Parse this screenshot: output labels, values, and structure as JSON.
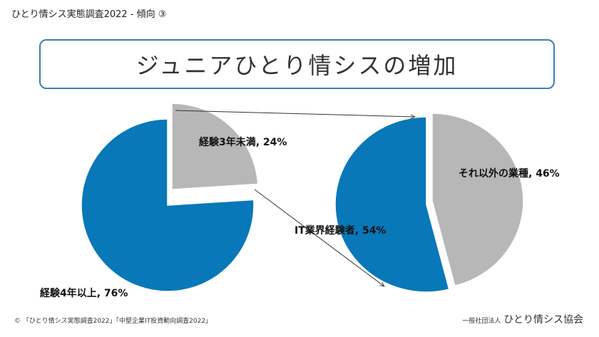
{
  "header": {
    "text": "ひとり情シス実態調査2022 - 傾向 ③"
  },
  "title": "ジュニアひとり情シスの増加",
  "chart_data": [
    {
      "type": "pie",
      "labels": [
        "経験3年未満",
        "経験4年以上"
      ],
      "values": [
        24,
        76
      ],
      "data_labels": [
        "経験3年未満, 24%",
        "経験4年以上, 76%"
      ],
      "colors": [
        "#b7b7b7",
        "#0878b8"
      ],
      "exploded": "経験3年未満"
    },
    {
      "type": "pie",
      "labels": [
        "それ以外の業種",
        "IT業界経験者"
      ],
      "values": [
        46,
        54
      ],
      "data_labels": [
        "それ以外の業種, 46%",
        "IT業界経験者, 54%"
      ],
      "colors": [
        "#b7b7b7",
        "#0878b8"
      ],
      "exploded": "それ以外の業種"
    }
  ],
  "footer": {
    "source": "© 「ひとり情シス実態調査2022」「中堅企業IT投資動向調査2022」",
    "org_prefix": "一般社団法人",
    "org_name": "ひとり情シス協会"
  }
}
